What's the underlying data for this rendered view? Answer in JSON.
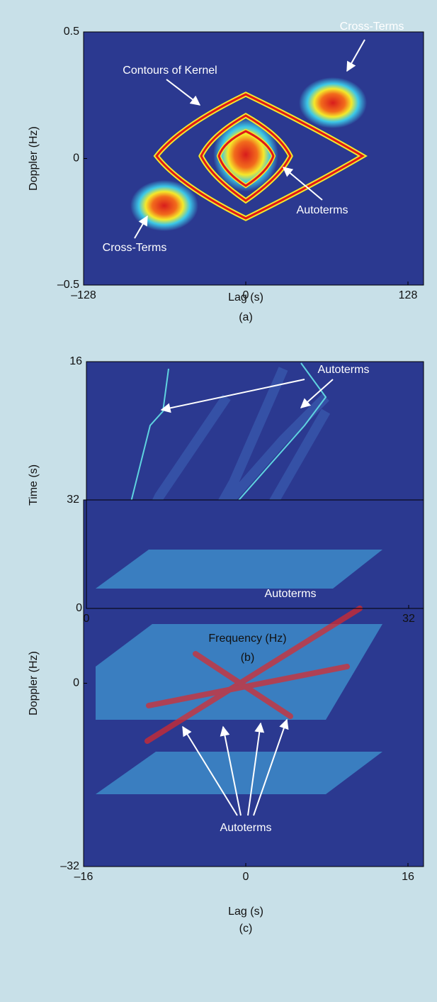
{
  "chart_data": [
    {
      "type": "image",
      "xlabel": "Lag (s)",
      "ylabel": "Doppler (Hz)",
      "caption": "(a)",
      "xlim": [
        -128,
        128
      ],
      "ylim": [
        -0.5,
        0.5
      ],
      "xticks": [
        {
          "value": -128,
          "label": "–128"
        },
        0,
        128
      ],
      "yticks": [
        {
          "value": -0.5,
          "label": "–0.5"
        },
        0,
        0.5
      ],
      "annotations": [
        "Cross-Terms",
        "Contours of Kernel",
        "Autoterms",
        "Cross-Terms"
      ]
    },
    {
      "type": "image",
      "xlabel": "Frequency (Hz)",
      "ylabel": "Time (s)",
      "caption": "(b)",
      "xlim": [
        0,
        32
      ],
      "ylim": [
        0,
        16
      ],
      "xticks": [
        0,
        32
      ],
      "yticks": [
        0,
        16
      ],
      "annotations": [
        "Autoterms",
        "Autoterms"
      ]
    },
    {
      "type": "image",
      "xlabel": "Lag (s)",
      "ylabel": "Doppler (Hz)",
      "caption": "(c)",
      "xlim": [
        -16,
        16
      ],
      "ylim": [
        -32,
        32
      ],
      "xticks": [
        {
          "value": -16,
          "label": "–16"
        },
        0,
        16
      ],
      "yticks": [
        {
          "value": -32,
          "label": "–32"
        },
        0,
        32
      ],
      "annotations": [
        "Autoterms"
      ]
    }
  ]
}
